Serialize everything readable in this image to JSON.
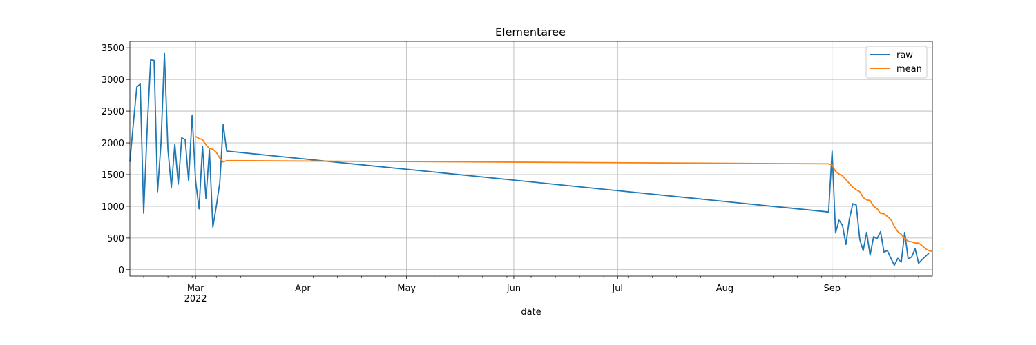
{
  "chart_data": {
    "type": "line",
    "title": "Elementaree",
    "xlabel": "date",
    "ylabel": "",
    "xlim": [
      "2022-02-10",
      "2022-09-30"
    ],
    "ylim": [
      -100,
      3600
    ],
    "grid": true,
    "legend_position": "top-right",
    "x_ticks": [
      {
        "date": "2022-03-01",
        "label": "Mar",
        "sublabel": "2022"
      },
      {
        "date": "2022-04-01",
        "label": "Apr"
      },
      {
        "date": "2022-05-01",
        "label": "May"
      },
      {
        "date": "2022-06-01",
        "label": "Jun"
      },
      {
        "date": "2022-07-01",
        "label": "Jul"
      },
      {
        "date": "2022-08-01",
        "label": "Aug"
      },
      {
        "date": "2022-09-01",
        "label": "Sep"
      }
    ],
    "y_ticks": [
      0,
      500,
      1000,
      1500,
      2000,
      2500,
      3000,
      3500
    ],
    "series": [
      {
        "name": "raw",
        "color": "#1f77b4",
        "points": [
          [
            "2022-02-10",
            1700
          ],
          [
            "2022-02-11",
            2300
          ],
          [
            "2022-02-12",
            2880
          ],
          [
            "2022-02-13",
            2930
          ],
          [
            "2022-02-14",
            890
          ],
          [
            "2022-02-15",
            2200
          ],
          [
            "2022-02-16",
            3310
          ],
          [
            "2022-02-17",
            3300
          ],
          [
            "2022-02-18",
            1230
          ],
          [
            "2022-02-19",
            2000
          ],
          [
            "2022-02-20",
            3410
          ],
          [
            "2022-02-21",
            1900
          ],
          [
            "2022-02-22",
            1300
          ],
          [
            "2022-02-23",
            1980
          ],
          [
            "2022-02-24",
            1350
          ],
          [
            "2022-02-25",
            2080
          ],
          [
            "2022-02-26",
            2050
          ],
          [
            "2022-02-27",
            1400
          ],
          [
            "2022-02-28",
            2440
          ],
          [
            "2022-03-01",
            1400
          ],
          [
            "2022-03-02",
            960
          ],
          [
            "2022-03-03",
            1950
          ],
          [
            "2022-03-04",
            1120
          ],
          [
            "2022-03-05",
            1890
          ],
          [
            "2022-03-06",
            670
          ],
          [
            "2022-03-07",
            1000
          ],
          [
            "2022-03-08",
            1370
          ],
          [
            "2022-03-09",
            2290
          ],
          [
            "2022-03-10",
            1870
          ],
          [
            "2022-08-31",
            910
          ],
          [
            "2022-09-01",
            1870
          ],
          [
            "2022-09-02",
            580
          ],
          [
            "2022-09-03",
            780
          ],
          [
            "2022-09-04",
            700
          ],
          [
            "2022-09-05",
            400
          ],
          [
            "2022-09-06",
            800
          ],
          [
            "2022-09-07",
            1040
          ],
          [
            "2022-09-08",
            1020
          ],
          [
            "2022-09-09",
            480
          ],
          [
            "2022-09-10",
            300
          ],
          [
            "2022-09-11",
            590
          ],
          [
            "2022-09-12",
            230
          ],
          [
            "2022-09-13",
            520
          ],
          [
            "2022-09-14",
            490
          ],
          [
            "2022-09-15",
            600
          ],
          [
            "2022-09-16",
            280
          ],
          [
            "2022-09-17",
            300
          ],
          [
            "2022-09-18",
            180
          ],
          [
            "2022-09-19",
            70
          ],
          [
            "2022-09-20",
            180
          ],
          [
            "2022-09-21",
            120
          ],
          [
            "2022-09-22",
            590
          ],
          [
            "2022-09-23",
            170
          ],
          [
            "2022-09-24",
            200
          ],
          [
            "2022-09-25",
            330
          ],
          [
            "2022-09-26",
            100
          ],
          [
            "2022-09-27",
            160
          ],
          [
            "2022-09-28",
            210
          ],
          [
            "2022-09-29",
            260
          ]
        ]
      },
      {
        "name": "mean",
        "color": "#ff7f0e",
        "points": [
          [
            "2022-03-01",
            2100
          ],
          [
            "2022-03-02",
            2070
          ],
          [
            "2022-03-03",
            2050
          ],
          [
            "2022-03-04",
            1970
          ],
          [
            "2022-03-05",
            1910
          ],
          [
            "2022-03-06",
            1900
          ],
          [
            "2022-03-07",
            1850
          ],
          [
            "2022-03-08",
            1760
          ],
          [
            "2022-03-09",
            1700
          ],
          [
            "2022-03-10",
            1720
          ],
          [
            "2022-03-11",
            1720
          ],
          [
            "2022-08-31",
            1670
          ],
          [
            "2022-09-01",
            1650
          ],
          [
            "2022-09-02",
            1550
          ],
          [
            "2022-09-03",
            1510
          ],
          [
            "2022-09-04",
            1480
          ],
          [
            "2022-09-05",
            1420
          ],
          [
            "2022-09-06",
            1360
          ],
          [
            "2022-09-07",
            1300
          ],
          [
            "2022-09-08",
            1260
          ],
          [
            "2022-09-09",
            1230
          ],
          [
            "2022-09-10",
            1140
          ],
          [
            "2022-09-11",
            1100
          ],
          [
            "2022-09-12",
            1090
          ],
          [
            "2022-09-13",
            1000
          ],
          [
            "2022-09-14",
            960
          ],
          [
            "2022-09-15",
            890
          ],
          [
            "2022-09-16",
            880
          ],
          [
            "2022-09-17",
            840
          ],
          [
            "2022-09-18",
            790
          ],
          [
            "2022-09-19",
            680
          ],
          [
            "2022-09-20",
            600
          ],
          [
            "2022-09-21",
            560
          ],
          [
            "2022-09-22",
            490
          ],
          [
            "2022-09-23",
            450
          ],
          [
            "2022-09-24",
            440
          ],
          [
            "2022-09-25",
            420
          ],
          [
            "2022-09-26",
            420
          ],
          [
            "2022-09-27",
            380
          ],
          [
            "2022-09-28",
            330
          ],
          [
            "2022-09-29",
            300
          ],
          [
            "2022-09-30",
            290
          ]
        ]
      }
    ]
  }
}
